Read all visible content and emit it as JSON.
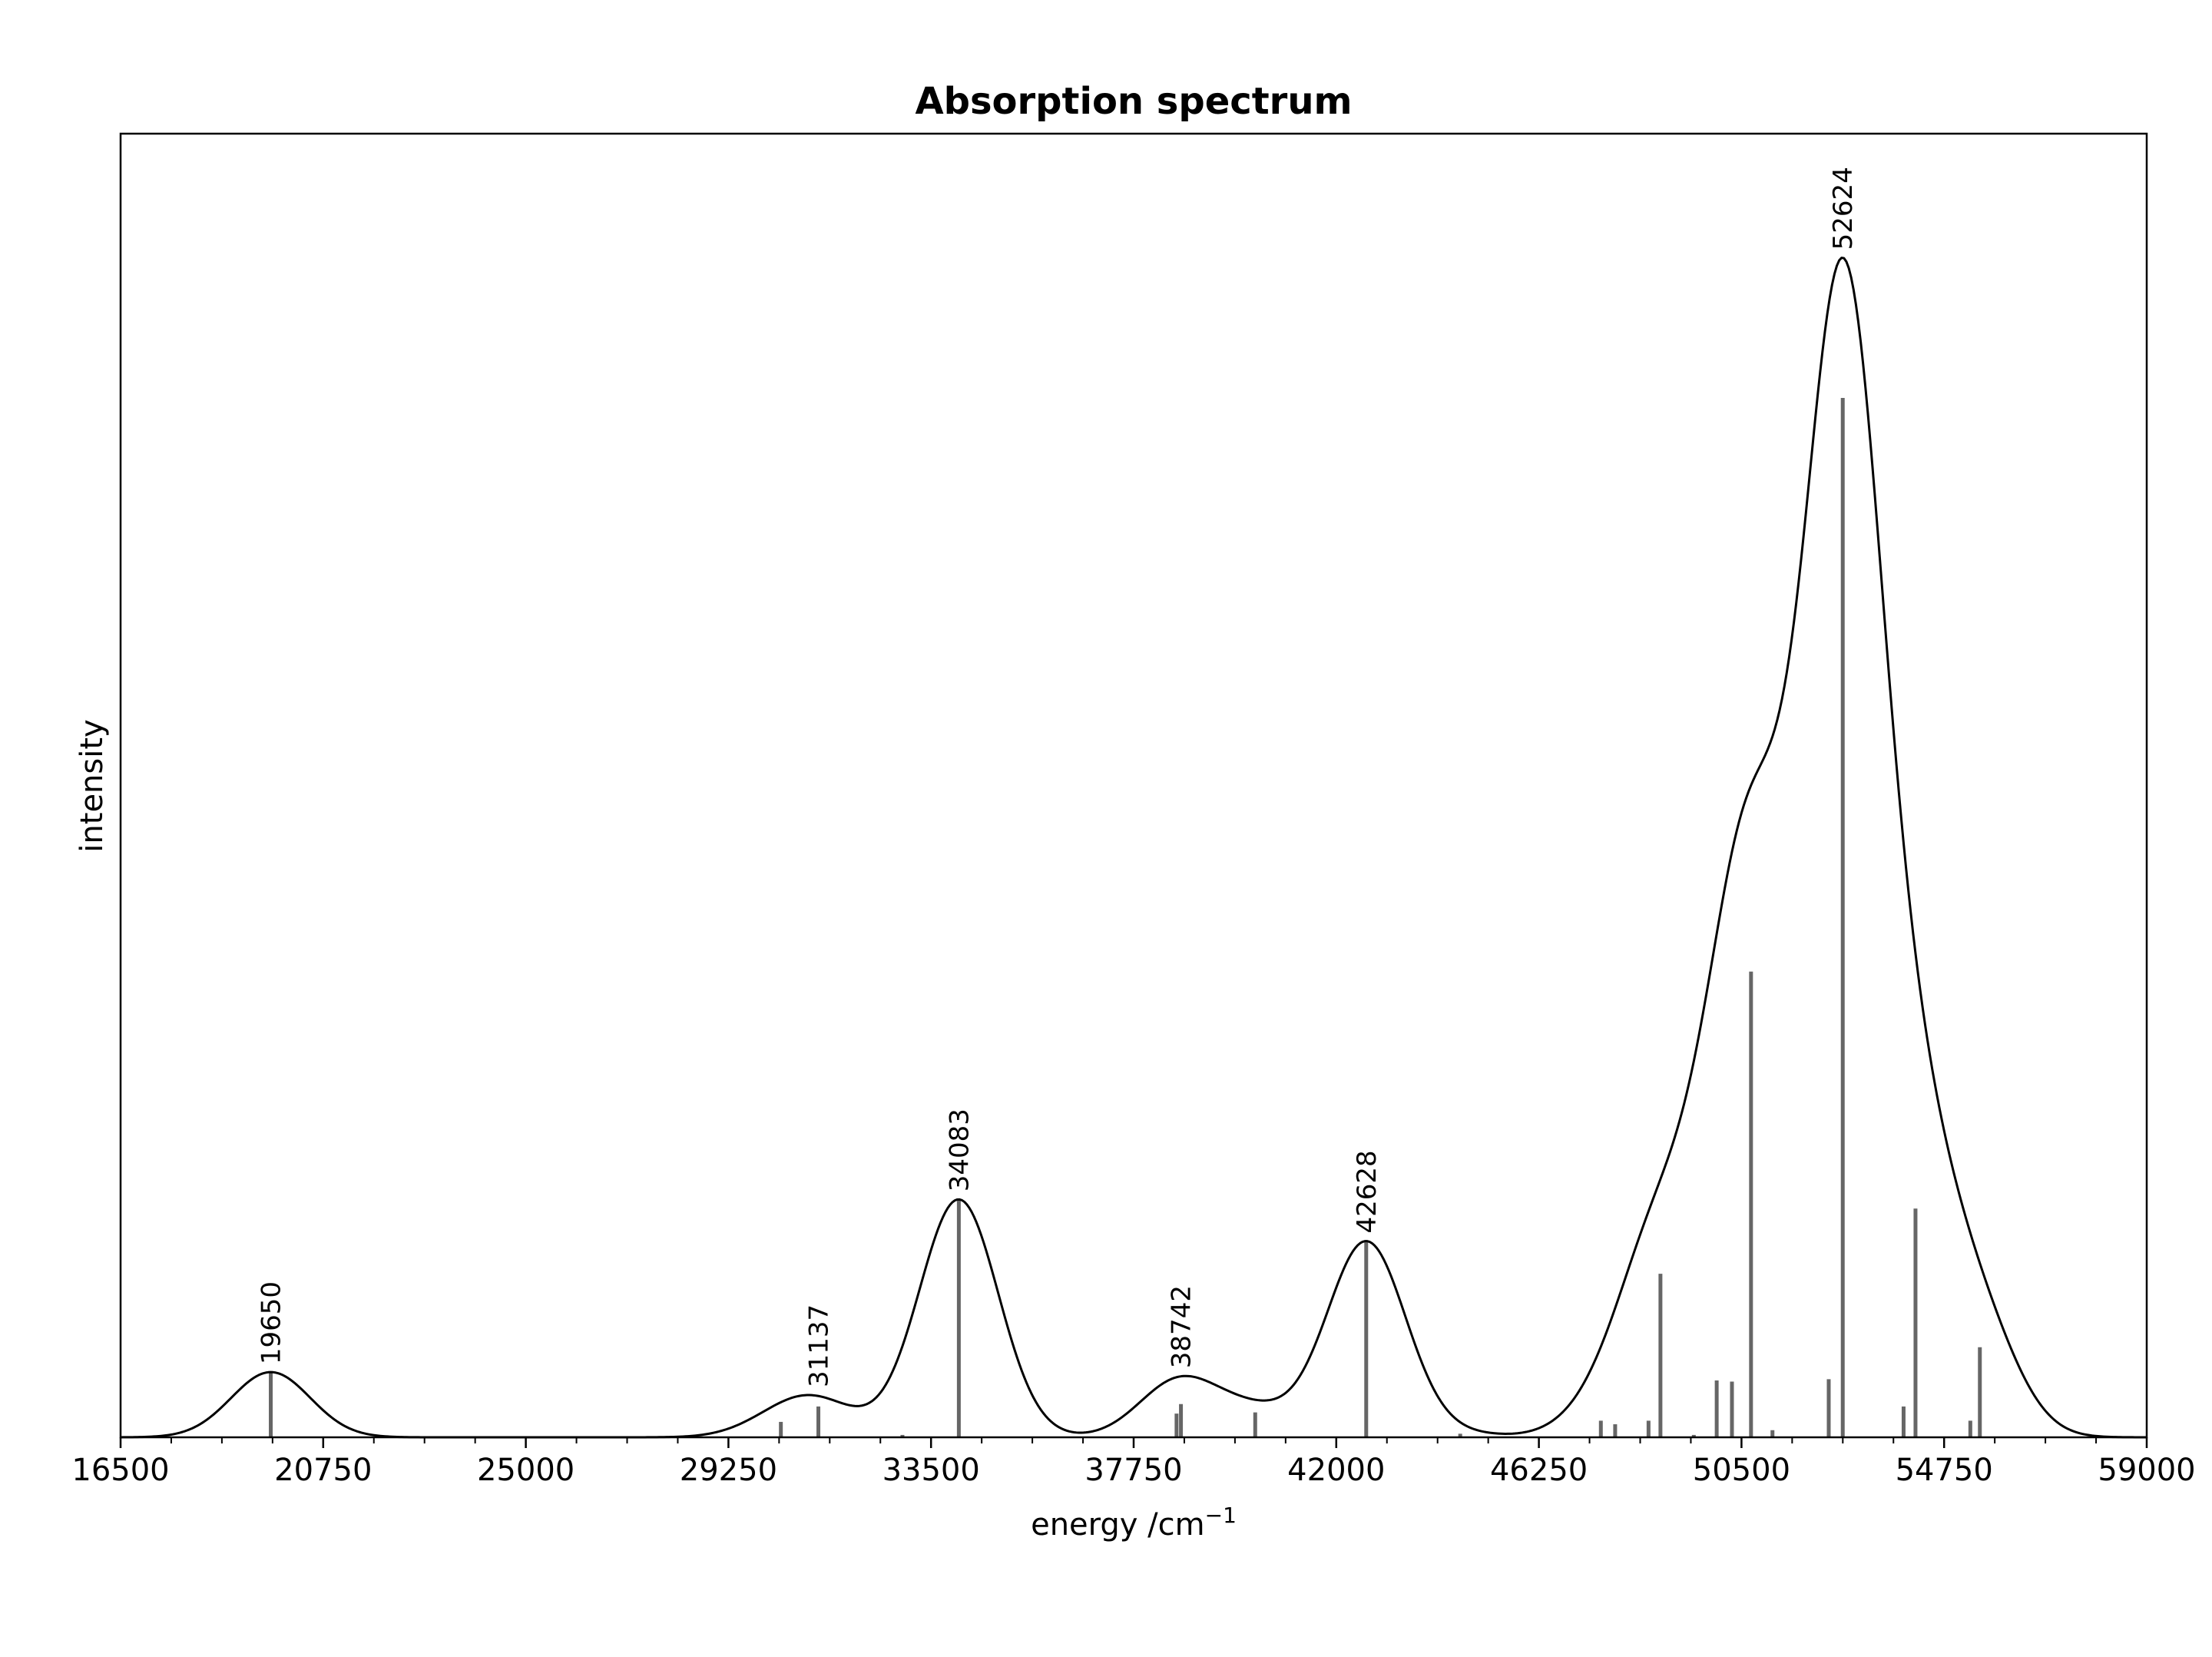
{
  "chart_data": {
    "type": "line",
    "title": "Absorption spectrum",
    "xlabel": "energy /cm",
    "xlabel_superscript": "−1",
    "ylabel": "intensity",
    "xlim": [
      16500,
      59000
    ],
    "ylim": [
      0,
      1.1
    ],
    "grid": false,
    "x_ticks": [
      "16500",
      "20750",
      "25000",
      "29250",
      "33500",
      "37750",
      "42000",
      "46250",
      "50500",
      "54750",
      "59000"
    ],
    "x_tick_values": [
      16500,
      20750,
      25000,
      29250,
      33500,
      37750,
      42000,
      46250,
      50500,
      54750,
      59000
    ],
    "x_minor_tick_step": 1062.5,
    "line_color": "#000000",
    "stick_color": "#666666",
    "spectrum": {
      "fwhm": 1950,
      "x_step": 50
    },
    "transitions": [
      {
        "x": 19650,
        "y": 0.055
      },
      {
        "x": 30350,
        "y": 0.013
      },
      {
        "x": 31137,
        "y": 0.026
      },
      {
        "x": 32900,
        "y": 0.002
      },
      {
        "x": 34083,
        "y": 0.2
      },
      {
        "x": 38650,
        "y": 0.02
      },
      {
        "x": 38742,
        "y": 0.028
      },
      {
        "x": 40300,
        "y": 0.021
      },
      {
        "x": 42628,
        "y": 0.165
      },
      {
        "x": 44600,
        "y": 0.003
      },
      {
        "x": 47550,
        "y": 0.014
      },
      {
        "x": 47850,
        "y": 0.011
      },
      {
        "x": 48550,
        "y": 0.014
      },
      {
        "x": 48800,
        "y": 0.138
      },
      {
        "x": 49500,
        "y": 0.002
      },
      {
        "x": 49980,
        "y": 0.048
      },
      {
        "x": 50300,
        "y": 0.047
      },
      {
        "x": 50700,
        "y": 0.393
      },
      {
        "x": 51150,
        "y": 0.006
      },
      {
        "x": 52330,
        "y": 0.049
      },
      {
        "x": 52624,
        "y": 0.877
      },
      {
        "x": 53900,
        "y": 0.026
      },
      {
        "x": 54150,
        "y": 0.193
      },
      {
        "x": 55300,
        "y": 0.014
      },
      {
        "x": 55500,
        "y": 0.076
      }
    ],
    "peak_labels": [
      {
        "x": 19650,
        "text": "19650"
      },
      {
        "x": 31137,
        "text": "31137"
      },
      {
        "x": 34083,
        "text": "34083"
      },
      {
        "x": 38742,
        "text": "38742"
      },
      {
        "x": 42628,
        "text": "42628"
      },
      {
        "x": 52624,
        "text": "52624"
      }
    ]
  }
}
